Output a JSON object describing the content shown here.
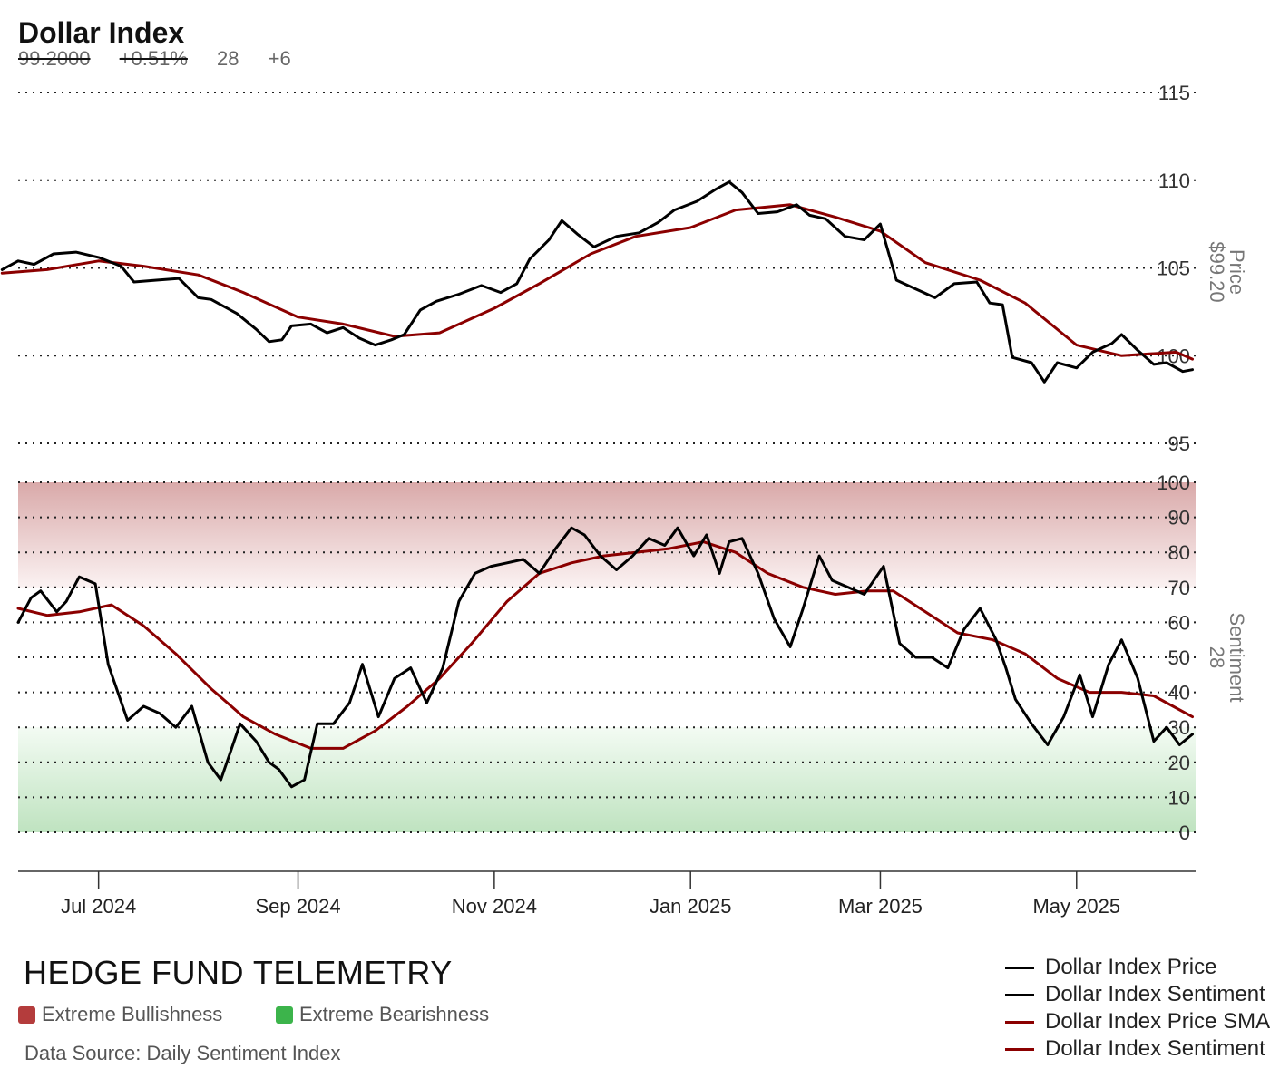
{
  "header": {
    "title": "Dollar Index",
    "price": "99.2000",
    "change": "+0.51%",
    "sentiment": "28",
    "sentiment_change": "+6"
  },
  "footer": {
    "brand": "HEDGE FUND TELEMETRY",
    "key_bull": "Extreme Bullishness",
    "key_bear": "Extreme Bearishness",
    "source": "Data Source: Daily Sentiment Index"
  },
  "colors": {
    "price": "#000000",
    "sma": "#8b0000",
    "bull": "#b43c3c",
    "bear": "#3cb44b"
  },
  "chart_data": [
    {
      "type": "line",
      "title": "Dollar Index",
      "ylabel": "Price",
      "ylabel_value": "$99.20",
      "ylim": [
        95,
        115
      ],
      "yticks": [
        "95",
        "100",
        "105",
        "110",
        "115"
      ],
      "ytick_values": [
        95,
        100,
        105,
        110,
        115
      ],
      "grid": true,
      "series": [
        {
          "name": "Dollar Index Price",
          "points": [
            [
              "2024-06-01",
              104.9
            ],
            [
              "2024-06-06",
              105.4
            ],
            [
              "2024-06-11",
              105.2
            ],
            [
              "2024-06-17",
              105.8
            ],
            [
              "2024-06-24",
              105.9
            ],
            [
              "2024-07-01",
              105.6
            ],
            [
              "2024-07-08",
              105.1
            ],
            [
              "2024-07-12",
              104.2
            ],
            [
              "2024-07-19",
              104.3
            ],
            [
              "2024-07-26",
              104.4
            ],
            [
              "2024-08-01",
              103.3
            ],
            [
              "2024-08-05",
              103.2
            ],
            [
              "2024-08-09",
              102.8
            ],
            [
              "2024-08-13",
              102.4
            ],
            [
              "2024-08-19",
              101.5
            ],
            [
              "2024-08-23",
              100.8
            ],
            [
              "2024-08-27",
              100.9
            ],
            [
              "2024-08-30",
              101.7
            ],
            [
              "2024-09-05",
              101.8
            ],
            [
              "2024-09-10",
              101.3
            ],
            [
              "2024-09-15",
              101.6
            ],
            [
              "2024-09-20",
              101.0
            ],
            [
              "2024-09-25",
              100.6
            ],
            [
              "2024-09-30",
              100.9
            ],
            [
              "2024-10-04",
              101.2
            ],
            [
              "2024-10-09",
              102.6
            ],
            [
              "2024-10-14",
              103.1
            ],
            [
              "2024-10-21",
              103.5
            ],
            [
              "2024-10-28",
              104.0
            ],
            [
              "2024-11-03",
              103.6
            ],
            [
              "2024-11-08",
              104.1
            ],
            [
              "2024-11-12",
              105.5
            ],
            [
              "2024-11-18",
              106.6
            ],
            [
              "2024-11-22",
              107.7
            ],
            [
              "2024-11-27",
              106.9
            ],
            [
              "2024-12-02",
              106.2
            ],
            [
              "2024-12-09",
              106.8
            ],
            [
              "2024-12-16",
              107.0
            ],
            [
              "2024-12-22",
              107.6
            ],
            [
              "2024-12-27",
              108.3
            ],
            [
              "2025-01-03",
              108.8
            ],
            [
              "2025-01-09",
              109.5
            ],
            [
              "2025-01-13",
              109.9
            ],
            [
              "2025-01-17",
              109.3
            ],
            [
              "2025-01-22",
              108.1
            ],
            [
              "2025-01-28",
              108.2
            ],
            [
              "2025-02-03",
              108.6
            ],
            [
              "2025-02-07",
              108.0
            ],
            [
              "2025-02-12",
              107.8
            ],
            [
              "2025-02-18",
              106.8
            ],
            [
              "2025-02-24",
              106.6
            ],
            [
              "2025-03-01",
              107.5
            ],
            [
              "2025-03-06",
              104.3
            ],
            [
              "2025-03-12",
              103.8
            ],
            [
              "2025-03-18",
              103.3
            ],
            [
              "2025-03-24",
              104.1
            ],
            [
              "2025-03-31",
              104.2
            ],
            [
              "2025-04-04",
              103.0
            ],
            [
              "2025-04-08",
              102.9
            ],
            [
              "2025-04-11",
              99.9
            ],
            [
              "2025-04-17",
              99.6
            ],
            [
              "2025-04-21",
              98.5
            ],
            [
              "2025-04-25",
              99.6
            ],
            [
              "2025-05-01",
              99.3
            ],
            [
              "2025-05-06",
              100.2
            ],
            [
              "2025-05-12",
              100.7
            ],
            [
              "2025-05-15",
              101.2
            ],
            [
              "2025-05-20",
              100.3
            ],
            [
              "2025-05-25",
              99.5
            ],
            [
              "2025-05-29",
              99.6
            ],
            [
              "2025-06-03",
              99.1
            ],
            [
              "2025-06-06",
              99.2
            ]
          ]
        },
        {
          "name": "Dollar Index Price SMA",
          "points": [
            [
              "2024-06-01",
              104.7
            ],
            [
              "2024-06-15",
              104.9
            ],
            [
              "2024-07-01",
              105.4
            ],
            [
              "2024-07-15",
              105.1
            ],
            [
              "2024-08-01",
              104.6
            ],
            [
              "2024-08-15",
              103.6
            ],
            [
              "2024-09-01",
              102.2
            ],
            [
              "2024-09-15",
              101.8
            ],
            [
              "2024-10-01",
              101.1
            ],
            [
              "2024-10-15",
              101.3
            ],
            [
              "2024-11-01",
              102.7
            ],
            [
              "2024-11-15",
              104.1
            ],
            [
              "2024-12-01",
              105.8
            ],
            [
              "2024-12-15",
              106.8
            ],
            [
              "2025-01-01",
              107.3
            ],
            [
              "2025-01-15",
              108.3
            ],
            [
              "2025-02-01",
              108.6
            ],
            [
              "2025-02-15",
              107.9
            ],
            [
              "2025-03-01",
              107.1
            ],
            [
              "2025-03-15",
              105.3
            ],
            [
              "2025-04-01",
              104.3
            ],
            [
              "2025-04-15",
              103.0
            ],
            [
              "2025-05-01",
              100.6
            ],
            [
              "2025-05-15",
              100.0
            ],
            [
              "2025-06-01",
              100.2
            ],
            [
              "2025-06-06",
              99.8
            ]
          ]
        }
      ]
    },
    {
      "type": "line",
      "ylabel": "Sentiment",
      "ylabel_value": "28",
      "ylim": [
        0,
        100
      ],
      "yticks": [
        "0",
        "10",
        "20",
        "30",
        "40",
        "50",
        "60",
        "70",
        "80",
        "90",
        "100"
      ],
      "ytick_values": [
        0,
        10,
        20,
        30,
        40,
        50,
        60,
        70,
        80,
        90,
        100
      ],
      "bands": [
        {
          "label": "Extreme Bullishness",
          "from": 70,
          "to": 100
        },
        {
          "label": "Extreme Bearishness",
          "from": 0,
          "to": 30
        }
      ],
      "xticks": [
        "Jul 2024",
        "Sep 2024",
        "Nov 2024",
        "Jan 2025",
        "Mar 2025",
        "May 2025"
      ],
      "xtick_dates": [
        "2024-07-01",
        "2024-09-01",
        "2024-11-01",
        "2025-01-01",
        "2025-03-01",
        "2025-05-01"
      ],
      "xlim": [
        "2024-06-06",
        "2025-06-07"
      ],
      "grid": true,
      "series": [
        {
          "name": "Dollar Index Sentiment",
          "points": [
            [
              "2024-06-06",
              60
            ],
            [
              "2024-06-10",
              67
            ],
            [
              "2024-06-13",
              69
            ],
            [
              "2024-06-18",
              63
            ],
            [
              "2024-06-21",
              66
            ],
            [
              "2024-06-25",
              73
            ],
            [
              "2024-06-30",
              71
            ],
            [
              "2024-07-04",
              48
            ],
            [
              "2024-07-10",
              32
            ],
            [
              "2024-07-15",
              36
            ],
            [
              "2024-07-20",
              34
            ],
            [
              "2024-07-25",
              30
            ],
            [
              "2024-07-30",
              36
            ],
            [
              "2024-08-04",
              20
            ],
            [
              "2024-08-08",
              15
            ],
            [
              "2024-08-14",
              31
            ],
            [
              "2024-08-19",
              26
            ],
            [
              "2024-08-23",
              20
            ],
            [
              "2024-08-26",
              18
            ],
            [
              "2024-08-30",
              13
            ],
            [
              "2024-09-03",
              15
            ],
            [
              "2024-09-07",
              31
            ],
            [
              "2024-09-12",
              31
            ],
            [
              "2024-09-17",
              37
            ],
            [
              "2024-09-21",
              48
            ],
            [
              "2024-09-26",
              33
            ],
            [
              "2024-10-01",
              44
            ],
            [
              "2024-10-06",
              47
            ],
            [
              "2024-10-11",
              37
            ],
            [
              "2024-10-16",
              47
            ],
            [
              "2024-10-21",
              66
            ],
            [
              "2024-10-26",
              74
            ],
            [
              "2024-10-31",
              76
            ],
            [
              "2024-11-05",
              77
            ],
            [
              "2024-11-10",
              78
            ],
            [
              "2024-11-15",
              74
            ],
            [
              "2024-11-20",
              81
            ],
            [
              "2024-11-25",
              87
            ],
            [
              "2024-11-29",
              85
            ],
            [
              "2024-12-04",
              79
            ],
            [
              "2024-12-09",
              75
            ],
            [
              "2024-12-14",
              79
            ],
            [
              "2024-12-19",
              84
            ],
            [
              "2024-12-24",
              82
            ],
            [
              "2024-12-28",
              87
            ],
            [
              "2025-01-02",
              79
            ],
            [
              "2025-01-06",
              85
            ],
            [
              "2025-01-10",
              74
            ],
            [
              "2025-01-13",
              83
            ],
            [
              "2025-01-17",
              84
            ],
            [
              "2025-01-22",
              74
            ],
            [
              "2025-01-27",
              61
            ],
            [
              "2025-02-01",
              53
            ],
            [
              "2025-02-05",
              64
            ],
            [
              "2025-02-10",
              79
            ],
            [
              "2025-02-14",
              72
            ],
            [
              "2025-02-19",
              70
            ],
            [
              "2025-02-24",
              68
            ],
            [
              "2025-03-02",
              76
            ],
            [
              "2025-03-07",
              54
            ],
            [
              "2025-03-12",
              50
            ],
            [
              "2025-03-17",
              50
            ],
            [
              "2025-03-22",
              47
            ],
            [
              "2025-03-27",
              58
            ],
            [
              "2025-04-01",
              64
            ],
            [
              "2025-04-06",
              55
            ],
            [
              "2025-04-09",
              47
            ],
            [
              "2025-04-12",
              38
            ],
            [
              "2025-04-17",
              31
            ],
            [
              "2025-04-22",
              25
            ],
            [
              "2025-04-27",
              33
            ],
            [
              "2025-05-02",
              45
            ],
            [
              "2025-05-06",
              33
            ],
            [
              "2025-05-11",
              48
            ],
            [
              "2025-05-15",
              55
            ],
            [
              "2025-05-20",
              44
            ],
            [
              "2025-05-25",
              26
            ],
            [
              "2025-05-29",
              30
            ],
            [
              "2025-06-02",
              25
            ],
            [
              "2025-06-06",
              28
            ]
          ]
        },
        {
          "name": "Dollar Index Sentiment SMA",
          "points": [
            [
              "2024-06-06",
              64
            ],
            [
              "2024-06-15",
              62
            ],
            [
              "2024-06-25",
              63
            ],
            [
              "2024-07-05",
              65
            ],
            [
              "2024-07-15",
              59
            ],
            [
              "2024-07-25",
              51
            ],
            [
              "2024-08-05",
              41
            ],
            [
              "2024-08-15",
              33
            ],
            [
              "2024-08-25",
              28
            ],
            [
              "2024-09-05",
              24
            ],
            [
              "2024-09-15",
              24
            ],
            [
              "2024-09-25",
              29
            ],
            [
              "2024-10-05",
              36
            ],
            [
              "2024-10-15",
              44
            ],
            [
              "2024-10-25",
              54
            ],
            [
              "2024-11-05",
              66
            ],
            [
              "2024-11-15",
              74
            ],
            [
              "2024-11-25",
              77
            ],
            [
              "2024-12-05",
              79
            ],
            [
              "2024-12-15",
              80
            ],
            [
              "2024-12-25",
              81
            ],
            [
              "2025-01-05",
              83
            ],
            [
              "2025-01-15",
              80
            ],
            [
              "2025-01-25",
              74
            ],
            [
              "2025-02-05",
              70
            ],
            [
              "2025-02-15",
              68
            ],
            [
              "2025-02-25",
              69
            ],
            [
              "2025-03-05",
              69
            ],
            [
              "2025-03-15",
              63
            ],
            [
              "2025-03-25",
              57
            ],
            [
              "2025-04-05",
              55
            ],
            [
              "2025-04-15",
              51
            ],
            [
              "2025-04-25",
              44
            ],
            [
              "2025-05-05",
              40
            ],
            [
              "2025-05-15",
              40
            ],
            [
              "2025-05-25",
              39
            ],
            [
              "2025-06-06",
              33
            ]
          ]
        }
      ]
    }
  ]
}
